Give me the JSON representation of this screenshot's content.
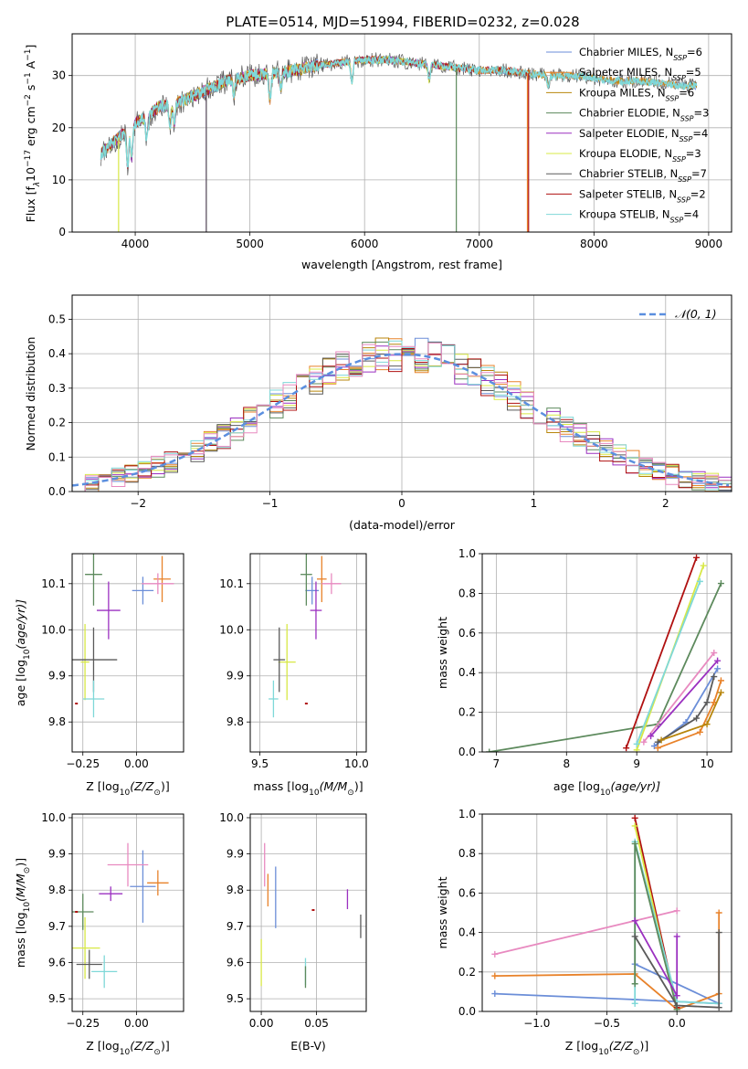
{
  "figure": {
    "title": "PLATE=0514, MJD=51994, FIBERID=0232, z=0.028"
  },
  "colors": {
    "chabrier_miles": "#6b8ed8",
    "salpeter_miles": "#e8822a",
    "kroupa_miles": "#b8860b",
    "chabrier_elodie": "#5d8a5d",
    "salpeter_elodie": "#9b30c0",
    "kroupa_elodie": "#d8e845",
    "chabrier_stelib": "#5a5a5a",
    "salpeter_stelib": "#b01010",
    "kroupa_stelib": "#7fd8d8",
    "pink": "#e88ac0",
    "normal_curve": "#5b8fdf",
    "grid": "#b0b0b0"
  },
  "chart_data": [
    {
      "id": "spectrum",
      "type": "line",
      "xlabel": "wavelength [Angstrom, rest frame]",
      "ylabel": "Flux [f",
      "ylabel_tail": "10",
      "ylabel_sup1": "−17",
      "ylabel_mid": " erg cm",
      "ylabel_sup2": "−2",
      "ylabel_mid2": " s",
      "ylabel_sup3": "−1",
      "ylabel_end": " A",
      "ylabel_sup4": "−1",
      "ylabel_end2": "]",
      "xlim": [
        3450,
        9200
      ],
      "ylim": [
        0,
        38
      ],
      "xticks": [
        4000,
        5000,
        6000,
        7000,
        8000,
        9000
      ],
      "yticks": [
        0,
        10,
        20,
        30
      ],
      "legend_position": "top-right",
      "legend": [
        {
          "label": "Chabrier MILES, N",
          "sub": "SSP",
          "suffix": "=6"
        },
        {
          "label": "Salpeter MILES, N",
          "sub": "SSP",
          "suffix": "=5"
        },
        {
          "label": "Kroupa MILES, N",
          "sub": "SSP",
          "suffix": "=6"
        },
        {
          "label": "Chabrier ELODIE, N",
          "sub": "SSP",
          "suffix": "=3"
        },
        {
          "label": "Salpeter ELODIE, N",
          "sub": "SSP",
          "suffix": "=4"
        },
        {
          "label": "Kroupa ELODIE, N",
          "sub": "SSP",
          "suffix": "=3"
        },
        {
          "label": "Chabrier STELIB, N",
          "sub": "SSP",
          "suffix": "=7"
        },
        {
          "label": "Salpeter STELIB, N",
          "sub": "SSP",
          "suffix": "=2"
        },
        {
          "label": "Kroupa STELIB, N",
          "sub": "SSP",
          "suffix": "=4"
        }
      ],
      "continuum_knots": [
        [
          3700,
          15
        ],
        [
          3800,
          17
        ],
        [
          3900,
          19
        ],
        [
          4000,
          21
        ],
        [
          4100,
          22
        ],
        [
          4200,
          24
        ],
        [
          4400,
          25
        ],
        [
          4600,
          27
        ],
        [
          4800,
          29
        ],
        [
          5000,
          30
        ],
        [
          5200,
          30.5
        ],
        [
          5400,
          31
        ],
        [
          5600,
          32
        ],
        [
          5800,
          32.5
        ],
        [
          6000,
          33
        ],
        [
          6200,
          33
        ],
        [
          6400,
          32.5
        ],
        [
          6600,
          32
        ],
        [
          6800,
          31.5
        ],
        [
          7000,
          31
        ],
        [
          7200,
          31
        ],
        [
          7400,
          30.5
        ],
        [
          7600,
          30
        ],
        [
          7800,
          30
        ],
        [
          8000,
          29.5
        ],
        [
          8200,
          29
        ],
        [
          8400,
          29
        ],
        [
          8600,
          28.5
        ],
        [
          8800,
          28
        ],
        [
          8900,
          28
        ]
      ],
      "absorption_features": [
        [
          3934,
          7
        ],
        [
          3969,
          6
        ],
        [
          4101,
          4
        ],
        [
          4304,
          4
        ],
        [
          4340,
          4
        ],
        [
          4861,
          3
        ],
        [
          5175,
          5
        ],
        [
          5270,
          3
        ],
        [
          5890,
          4
        ],
        [
          6563,
          3
        ],
        [
          7600,
          2
        ]
      ],
      "series_ranges": [
        [
          3700,
          8900
        ],
        [
          3700,
          8900
        ],
        [
          3700,
          8900
        ],
        [
          3700,
          6800
        ],
        [
          3700,
          6800
        ],
        [
          3700,
          6800
        ],
        [
          3700,
          8900
        ],
        [
          3700,
          7430
        ],
        [
          3700,
          8900
        ]
      ],
      "dropouts": [
        {
          "series": 5,
          "x": 3855,
          "y": 0
        },
        {
          "series": 4,
          "x": 4620,
          "y": 0
        },
        {
          "series": 6,
          "x": 4620,
          "y": 0
        },
        {
          "series": 3,
          "x": 6800,
          "y": 0
        },
        {
          "series": 1,
          "x": 7420,
          "y": 0
        },
        {
          "series": 7,
          "x": 7430,
          "y": 0
        }
      ]
    },
    {
      "id": "residuals",
      "type": "histogram",
      "xlabel": "(data-model)/error",
      "ylabel": "Normed distribution",
      "xlim": [
        -2.5,
        2.5
      ],
      "ylim": [
        0,
        0.57
      ],
      "xticks": [
        -2,
        -1,
        0,
        1,
        2
      ],
      "yticks": [
        0.0,
        0.1,
        0.2,
        0.3,
        0.4,
        0.5
      ],
      "bin_width": 0.1,
      "legend_position": "top-right",
      "legend": [
        {
          "label": "𝒩(0, 1)"
        }
      ],
      "histogram_spread": 0.045
    },
    {
      "id": "age_vs_Z",
      "type": "errorbar",
      "xlabel": "Z [log",
      "xlabel_sub": "10",
      "xlabel_end": "(Z/Z",
      "xlabel_sun": "⊙",
      "xlabel_close": ")]",
      "ylabel": "age  [log",
      "ylabel_sub": "10",
      "ylabel_end": "(age/yr)]",
      "xlim": [
        -0.3,
        0.22
      ],
      "ylim": [
        9.735,
        10.165
      ],
      "xticks": [
        -0.25,
        0.0
      ],
      "yticks": [
        9.8,
        9.9,
        10.0,
        10.1
      ],
      "points": [
        {
          "c": 0,
          "x": 0.03,
          "y": 10.085,
          "xe": 0.1,
          "ye": 0.06
        },
        {
          "c": 1,
          "x": 0.12,
          "y": 10.11,
          "xe": 0.08,
          "ye": 0.1
        },
        {
          "c": 9,
          "x": 0.1,
          "y": 10.1,
          "xe": 0.15,
          "ye": 0.045
        },
        {
          "c": 3,
          "x": -0.2,
          "y": 10.12,
          "xe": 0.08,
          "ye": 0.135
        },
        {
          "c": 4,
          "x": -0.13,
          "y": 10.042,
          "xe": 0.11,
          "ye": 0.125
        },
        {
          "c": 5,
          "x": -0.24,
          "y": 9.93,
          "xe": 0.04,
          "ye": 0.165
        },
        {
          "c": 6,
          "x": -0.2,
          "y": 9.935,
          "xe": 0.22,
          "ye": 0.14
        },
        {
          "c": 8,
          "x": -0.2,
          "y": 9.85,
          "xe": 0.1,
          "ye": 0.08
        },
        {
          "c": 7,
          "x": -0.28,
          "y": 9.84,
          "xe": 0.0,
          "ye": 0.0
        }
      ]
    },
    {
      "id": "age_vs_mass",
      "type": "errorbar",
      "xlabel": "mass [log",
      "xlabel_sub": "10",
      "xlabel_end": "(M/M",
      "xlabel_sun": "⊙",
      "xlabel_close": ")]",
      "xlim": [
        9.45,
        10.05
      ],
      "ylim": [
        9.735,
        10.165
      ],
      "xticks": [
        9.5,
        10.0
      ],
      "yticks": [
        9.8,
        9.9,
        10.0,
        10.1
      ],
      "points": [
        {
          "c": 0,
          "x": 9.77,
          "y": 10.085,
          "xe": 0.07,
          "ye": 0.06
        },
        {
          "c": 1,
          "x": 9.82,
          "y": 10.11,
          "xe": 0.05,
          "ye": 0.1
        },
        {
          "c": 9,
          "x": 9.87,
          "y": 10.1,
          "xe": 0.1,
          "ye": 0.045
        },
        {
          "c": 3,
          "x": 9.74,
          "y": 10.12,
          "xe": 0.06,
          "ye": 0.135
        },
        {
          "c": 4,
          "x": 9.79,
          "y": 10.042,
          "xe": 0.06,
          "ye": 0.125
        },
        {
          "c": 5,
          "x": 9.64,
          "y": 9.93,
          "xe": 0.09,
          "ye": 0.165
        },
        {
          "c": 6,
          "x": 9.6,
          "y": 9.935,
          "xe": 0.06,
          "ye": 0.14
        },
        {
          "c": 8,
          "x": 9.57,
          "y": 9.85,
          "xe": 0.05,
          "ye": 0.08
        },
        {
          "c": 7,
          "x": 9.74,
          "y": 9.84,
          "xe": 0.0,
          "ye": 0.0
        }
      ]
    },
    {
      "id": "mass_weight_vs_age",
      "type": "line",
      "xlabel": "age  [log",
      "xlabel_sub": "10",
      "xlabel_end": "(age/yr)]",
      "ylabel": "mass weight",
      "xlim": [
        6.8,
        10.35
      ],
      "ylim": [
        0,
        1
      ],
      "xticks": [
        7,
        8,
        9,
        10
      ],
      "yticks": [
        0.0,
        0.2,
        0.4,
        0.6,
        0.8,
        1.0
      ],
      "series": [
        {
          "c": 3,
          "x": [
            6.9,
            9.3,
            10.2
          ],
          "y": [
            0.0,
            0.14,
            0.85
          ]
        },
        {
          "c": 7,
          "x": [
            8.85,
            9.85
          ],
          "y": [
            0.02,
            0.98
          ]
        },
        {
          "c": 5,
          "x": [
            9.0,
            9.95
          ],
          "y": [
            0.01,
            0.94
          ]
        },
        {
          "c": 8,
          "x": [
            9.0,
            9.9
          ],
          "y": [
            0.04,
            0.86
          ]
        },
        {
          "c": 9,
          "x": [
            9.1,
            10.1
          ],
          "y": [
            0.05,
            0.5
          ]
        },
        {
          "c": 4,
          "x": [
            9.2,
            10.15
          ],
          "y": [
            0.08,
            0.46
          ]
        },
        {
          "c": 0,
          "x": [
            9.25,
            9.7,
            10.15
          ],
          "y": [
            0.03,
            0.15,
            0.42
          ]
        },
        {
          "c": 6,
          "x": [
            9.3,
            9.85,
            10.0,
            10.1
          ],
          "y": [
            0.05,
            0.17,
            0.25,
            0.38
          ]
        },
        {
          "c": 1,
          "x": [
            9.3,
            9.9,
            10.1,
            10.2
          ],
          "y": [
            0.02,
            0.1,
            0.25,
            0.36
          ]
        },
        {
          "c": 2,
          "x": [
            9.35,
            10.0,
            10.2
          ],
          "y": [
            0.06,
            0.14,
            0.3
          ]
        }
      ]
    },
    {
      "id": "mass_vs_Z",
      "type": "errorbar",
      "xlabel": "Z [log",
      "xlabel_sub": "10",
      "xlabel_end": "(Z/Z",
      "xlabel_sun": "⊙",
      "xlabel_close": ")]",
      "ylabel": "mass [log",
      "ylabel_sub": "10",
      "ylabel_end": "(M/M",
      "ylabel_sun": "⊙",
      "ylabel_close": ")]",
      "xlim": [
        -0.3,
        0.22
      ],
      "ylim": [
        9.465,
        10.01
      ],
      "xticks": [
        -0.25,
        0.0
      ],
      "yticks": [
        9.5,
        9.6,
        9.7,
        9.8,
        9.9,
        10.0
      ],
      "points": [
        {
          "c": 0,
          "x": 0.03,
          "y": 9.81,
          "xe": 0.12,
          "ye": 0.2
        },
        {
          "c": 1,
          "x": 0.1,
          "y": 9.82,
          "xe": 0.1,
          "ye": 0.07
        },
        {
          "c": 9,
          "x": -0.04,
          "y": 9.87,
          "xe": 0.19,
          "ye": 0.12
        },
        {
          "c": 3,
          "x": -0.25,
          "y": 9.74,
          "xe": 0.1,
          "ye": 0.1
        },
        {
          "c": 4,
          "x": -0.12,
          "y": 9.79,
          "xe": 0.11,
          "ye": 0.04
        },
        {
          "c": 5,
          "x": -0.24,
          "y": 9.64,
          "xe": 0.14,
          "ye": 0.17
        },
        {
          "c": 6,
          "x": -0.22,
          "y": 9.595,
          "xe": 0.12,
          "ye": 0.08
        },
        {
          "c": 8,
          "x": -0.15,
          "y": 9.575,
          "xe": 0.12,
          "ye": 0.09
        },
        {
          "c": 7,
          "x": -0.28,
          "y": 9.74,
          "xe": 0.0,
          "ye": 0.0
        }
      ]
    },
    {
      "id": "mass_vs_ebv",
      "type": "errorbar",
      "xlabel": "E(B-V)",
      "xlim": [
        -0.01,
        0.095
      ],
      "ylim": [
        9.465,
        10.01
      ],
      "xticks": [
        0.0,
        0.05
      ],
      "yticks": [
        9.5,
        9.6,
        9.7,
        9.8,
        9.9,
        10.0
      ],
      "points": [
        {
          "c": 9,
          "x": 0.003,
          "y": 9.87,
          "xe": 0.0,
          "ye": 0.12
        },
        {
          "c": 1,
          "x": 0.006,
          "y": 9.8,
          "xe": 0.0,
          "ye": 0.09
        },
        {
          "c": 0,
          "x": 0.013,
          "y": 9.78,
          "xe": 0.0,
          "ye": 0.17
        },
        {
          "c": 5,
          "x": 0.0,
          "y": 9.6,
          "xe": 0.0,
          "ye": 0.13
        },
        {
          "c": 8,
          "x": 0.04,
          "y": 9.575,
          "xe": 0.0,
          "ye": 0.075
        },
        {
          "c": 3,
          "x": 0.04,
          "y": 9.56,
          "xe": 0.0,
          "ye": 0.06
        },
        {
          "c": 7,
          "x": 0.047,
          "y": 9.745,
          "xe": 0.0,
          "ye": 0.0
        },
        {
          "c": 4,
          "x": 0.078,
          "y": 9.775,
          "xe": 0.0,
          "ye": 0.055
        },
        {
          "c": 6,
          "x": 0.09,
          "y": 9.7,
          "xe": 0.0,
          "ye": 0.065
        }
      ]
    },
    {
      "id": "mass_weight_vs_Z",
      "type": "line",
      "xlabel": "Z [log",
      "xlabel_sub": "10",
      "xlabel_end": "(Z/Z",
      "xlabel_sun": "⊙",
      "xlabel_close": ")]",
      "ylabel": "mass weight",
      "xlim": [
        -1.39,
        0.39
      ],
      "ylim": [
        0,
        1
      ],
      "xticks": [
        -1.0,
        -0.5,
        0.0
      ],
      "yticks": [
        0.0,
        0.2,
        0.4,
        0.6,
        0.8,
        1.0
      ],
      "series": [
        {
          "c": 9,
          "x": [
            -1.3,
            0.0
          ],
          "y": [
            0.29,
            0.51
          ]
        },
        {
          "c": 0,
          "x": [
            -1.3,
            -0.3,
            0.3
          ],
          "y": [
            0.09,
            0.06,
            0.04
          ]
        },
        {
          "c": 0,
          "x": [
            -0.3,
            0.3
          ],
          "y": [
            0.24,
            0.04
          ]
        },
        {
          "c": 1,
          "x": [
            -1.3,
            -0.3,
            0.0,
            0.3,
            0.3
          ],
          "y": [
            0.18,
            0.19,
            0.01,
            0.09,
            0.5
          ]
        },
        {
          "c": 7,
          "x": [
            -0.3,
            0.0
          ],
          "y": [
            0.98,
            0.02
          ]
        },
        {
          "c": 5,
          "x": [
            -0.3,
            0.0
          ],
          "y": [
            0.94,
            0.01
          ]
        },
        {
          "c": 8,
          "x": [
            -0.3,
            -0.3,
            0.0,
            0.3
          ],
          "y": [
            0.04,
            0.86,
            0.05,
            0.04
          ]
        },
        {
          "c": 3,
          "x": [
            -0.3,
            -0.3,
            0.0
          ],
          "y": [
            0.14,
            0.85,
            0.01
          ]
        },
        {
          "c": 4,
          "x": [
            -0.3,
            0.0,
            0.0
          ],
          "y": [
            0.46,
            0.08,
            0.38
          ]
        },
        {
          "c": 6,
          "x": [
            -0.3,
            0.0,
            0.3,
            0.3
          ],
          "y": [
            0.38,
            0.03,
            0.02,
            0.4
          ]
        }
      ]
    }
  ]
}
